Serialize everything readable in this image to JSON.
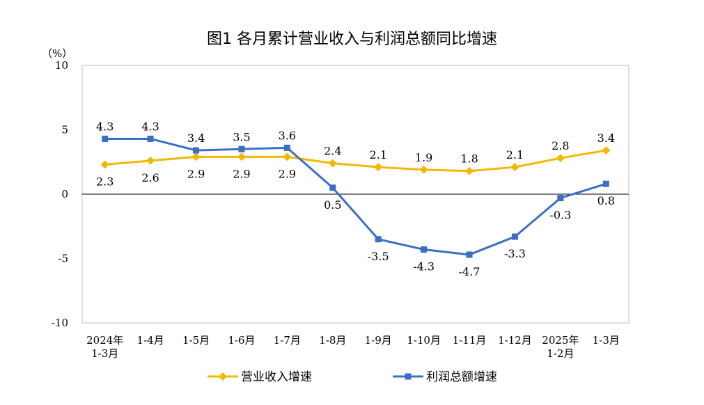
{
  "chart_data": {
    "type": "line",
    "title": "图1  各月累计营业收入与利润总额同比增速",
    "ylabel": "（%）",
    "ylim": [
      -10,
      10
    ],
    "yticks": [
      "10",
      "5",
      "0",
      "-5",
      "-10"
    ],
    "categories": [
      [
        "2024年",
        "1-3月"
      ],
      [
        "1-4月"
      ],
      [
        "1-5月"
      ],
      [
        "1-6月"
      ],
      [
        "1-7月"
      ],
      [
        "1-8月"
      ],
      [
        "1-9月"
      ],
      [
        "1-10月"
      ],
      [
        "1-11月"
      ],
      [
        "1-12月"
      ],
      [
        "2025年",
        "1-2月"
      ],
      [
        "1-3月"
      ]
    ],
    "series": [
      {
        "name": "营业收入增速",
        "color": "#F5B800",
        "marker": "diamond",
        "values": [
          2.3,
          2.6,
          2.9,
          2.9,
          2.9,
          2.4,
          2.1,
          1.9,
          1.8,
          2.1,
          2.8,
          3.4
        ],
        "labels": [
          "2.3",
          "2.6",
          "2.9",
          "2.9",
          "2.9",
          "2.4",
          "2.1",
          "1.9",
          "1.8",
          "2.1",
          "2.8",
          "3.4"
        ]
      },
      {
        "name": "利润总额增速",
        "color": "#3A6FC4",
        "marker": "square",
        "values": [
          4.3,
          4.3,
          3.4,
          3.5,
          3.6,
          0.5,
          -3.5,
          -4.3,
          -4.7,
          -3.3,
          -0.3,
          0.8
        ],
        "labels": [
          "4.3",
          "4.3",
          "3.4",
          "3.5",
          "3.6",
          "0.5",
          "-3.5",
          "-4.3",
          "-4.7",
          "-3.3",
          "-0.3",
          "0.8"
        ]
      }
    ],
    "grid": false,
    "legend": "bottom"
  }
}
